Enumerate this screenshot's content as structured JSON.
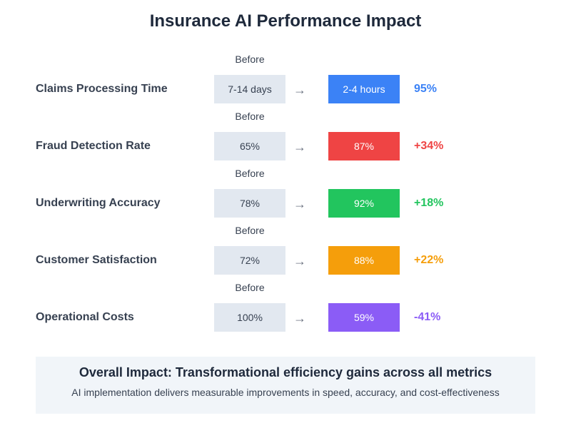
{
  "chart_data": {
    "type": "table",
    "title": "Insurance AI Performance Impact",
    "before_caption": "Before",
    "arrow_glyph": "→",
    "metrics": [
      {
        "label": "Claims Processing Time",
        "before": "7-14 days",
        "after": "2-4 hours",
        "change": "95%",
        "color": "#3b82f6"
      },
      {
        "label": "Fraud Detection Rate",
        "before": "65%",
        "after": "87%",
        "change": "+34%",
        "color": "#ef4444"
      },
      {
        "label": "Underwriting Accuracy",
        "before": "78%",
        "after": "92%",
        "change": "+18%",
        "color": "#22c55e"
      },
      {
        "label": "Customer Satisfaction",
        "before": "72%",
        "after": "88%",
        "change": "+22%",
        "color": "#f59e0b"
      },
      {
        "label": "Operational Costs",
        "before": "100%",
        "after": "59%",
        "change": "-41%",
        "color": "#8b5cf6"
      }
    ],
    "summary": {
      "title": "Overall Impact: Transformational efficiency gains across all metrics",
      "text": "AI implementation delivers measurable improvements in speed, accuracy, and cost-effectiveness"
    }
  }
}
